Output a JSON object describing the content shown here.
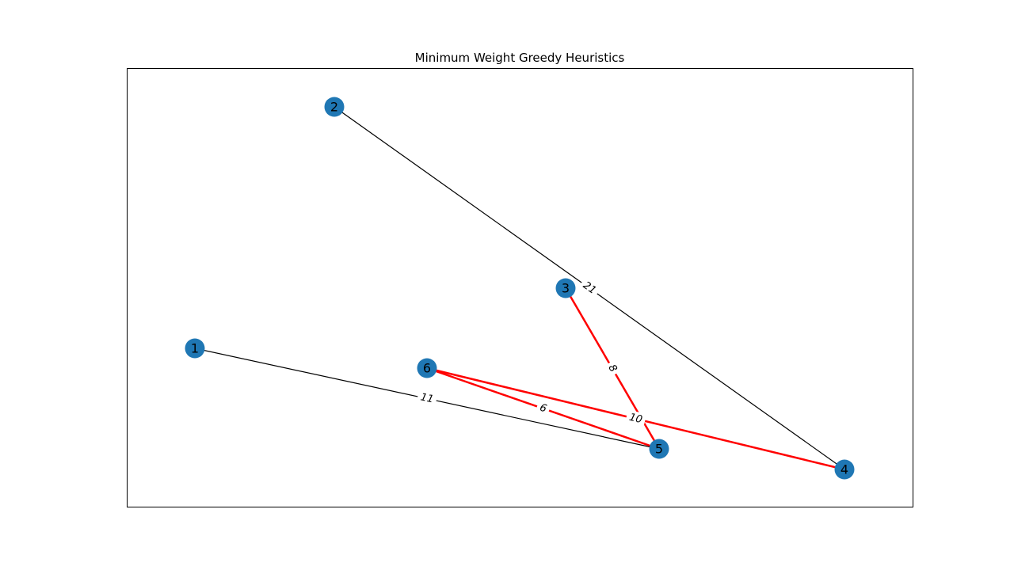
{
  "title": "Minimum Weight Greedy Heuristics",
  "colors": {
    "node": "#1f77b4",
    "edge_default": "#000000",
    "edge_highlight": "#ff0000",
    "frame": "#000000",
    "background": "#ffffff"
  },
  "nodes": [
    {
      "id": "1",
      "label": "1"
    },
    {
      "id": "2",
      "label": "2"
    },
    {
      "id": "3",
      "label": "3"
    },
    {
      "id": "4",
      "label": "4"
    },
    {
      "id": "5",
      "label": "5"
    },
    {
      "id": "6",
      "label": "6"
    }
  ],
  "edges": [
    {
      "source": "1",
      "target": "5",
      "weight": "11",
      "highlighted": false
    },
    {
      "source": "2",
      "target": "4",
      "weight": "21",
      "highlighted": false
    },
    {
      "source": "3",
      "target": "5",
      "weight": "8",
      "highlighted": true
    },
    {
      "source": "6",
      "target": "5",
      "weight": "6",
      "highlighted": true
    },
    {
      "source": "6",
      "target": "4",
      "weight": "10",
      "highlighted": true
    }
  ]
}
